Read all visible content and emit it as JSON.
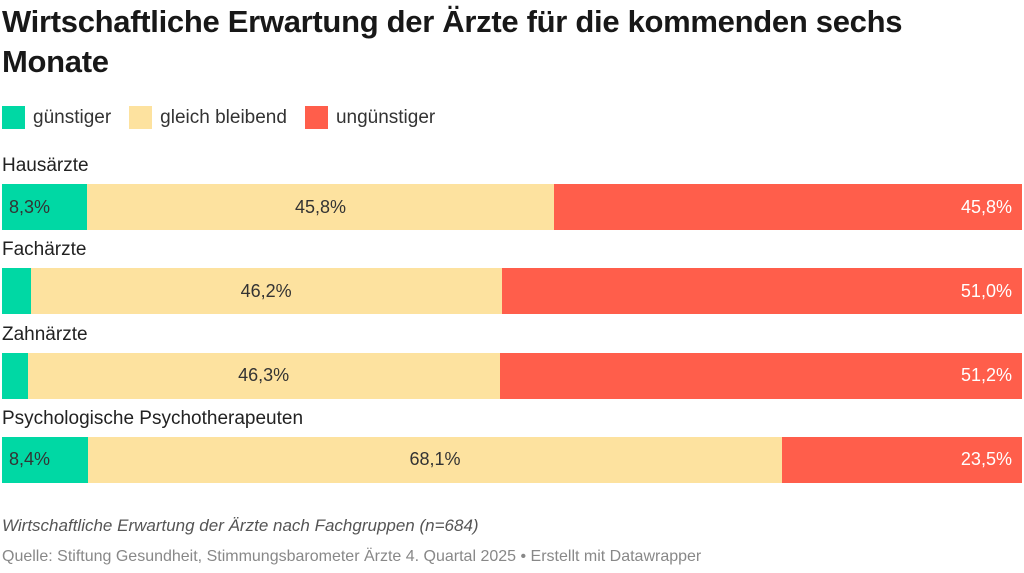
{
  "chart_data": {
    "type": "bar",
    "orientation": "horizontal",
    "stacked": true,
    "title": "Wirtschaftliche Erwartung der Ärzte für die kommenden sechs Monate",
    "categories": [
      "Hausärzte",
      "Fachärzte",
      "Zahnärzte",
      "Psychologische Psychotherapeuten"
    ],
    "series": [
      {
        "name": "günstiger",
        "color": "#00d8a4",
        "values": [
          8.3,
          2.8,
          2.5,
          8.4
        ],
        "labels": [
          "8,3%",
          "",
          "",
          "8,4%"
        ]
      },
      {
        "name": "gleich bleibend",
        "color": "#fde29f",
        "values": [
          45.8,
          46.2,
          46.3,
          68.1
        ],
        "labels": [
          "45,8%",
          "46,2%",
          "46,3%",
          "68,1%"
        ]
      },
      {
        "name": "ungünstiger",
        "color": "#ff5e4b",
        "values": [
          45.8,
          51.0,
          51.2,
          23.5
        ],
        "labels": [
          "45,8%",
          "51,0%",
          "51,2%",
          "23,5%"
        ]
      }
    ],
    "xlim": [
      0,
      100
    ],
    "legend_position": "top-left"
  },
  "notes": "Wirtschaftliche Erwartung der Ärzte nach Fachgruppen (n=684)",
  "source": "Quelle: Stiftung Gesundheit, Stimmungsbarometer Ärzte 4. Quartal 2025 • Erstellt mit Datawrapper"
}
